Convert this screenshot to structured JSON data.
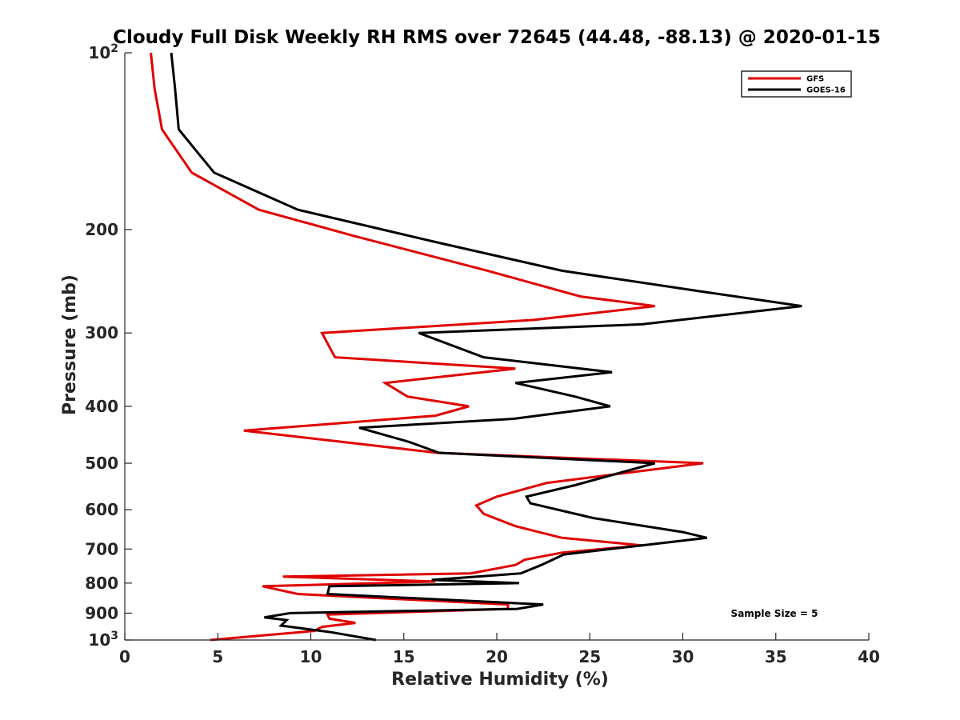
{
  "chart_data": {
    "type": "line",
    "title": "Cloudy Full Disk Weekly RH RMS over 72645 (44.48, -88.13) @ 2020-01-15",
    "xlabel": "Relative Humidity (%)",
    "ylabel": "Pressure (mb)",
    "xlim": [
      0,
      40
    ],
    "ylim": [
      100,
      1000
    ],
    "y_scale": "log",
    "y_reversed": true,
    "grid": false,
    "legend_position": "top-right",
    "x_ticks": [
      {
        "value": 0,
        "label": "0"
      },
      {
        "value": 5,
        "label": "5"
      },
      {
        "value": 10,
        "label": "10"
      },
      {
        "value": 15,
        "label": "15"
      },
      {
        "value": 20,
        "label": "20"
      },
      {
        "value": 25,
        "label": "25"
      },
      {
        "value": 30,
        "label": "30"
      },
      {
        "value": 35,
        "label": "35"
      },
      {
        "value": 40,
        "label": "40"
      }
    ],
    "y_ticks": [
      {
        "value": 100,
        "base": "10",
        "exp": "2"
      },
      {
        "value": 200,
        "label": "200"
      },
      {
        "value": 300,
        "label": "300"
      },
      {
        "value": 400,
        "label": "400"
      },
      {
        "value": 500,
        "label": "500"
      },
      {
        "value": 600,
        "label": "600"
      },
      {
        "value": 700,
        "label": "700"
      },
      {
        "value": 800,
        "label": "800"
      },
      {
        "value": 900,
        "label": "900"
      },
      {
        "value": 1000,
        "base": "10",
        "exp": "3"
      }
    ],
    "series": [
      {
        "name": "GFS",
        "color": "#e00000",
        "points": [
          [
            1.4,
            100
          ],
          [
            1.6,
            115
          ],
          [
            2.0,
            135
          ],
          [
            3.6,
            160
          ],
          [
            7.2,
            185
          ],
          [
            12.3,
            205
          ],
          [
            19.5,
            235
          ],
          [
            24.5,
            260
          ],
          [
            28.5,
            270
          ],
          [
            22.0,
            285
          ],
          [
            10.6,
            300
          ],
          [
            11.3,
            330
          ],
          [
            21.0,
            345
          ],
          [
            14.0,
            365
          ],
          [
            15.2,
            385
          ],
          [
            18.5,
            400
          ],
          [
            16.7,
            415
          ],
          [
            6.4,
            440
          ],
          [
            16.8,
            480
          ],
          [
            31.1,
            500
          ],
          [
            22.7,
            540
          ],
          [
            20.0,
            570
          ],
          [
            18.9,
            590
          ],
          [
            19.3,
            610
          ],
          [
            21.0,
            640
          ],
          [
            23.5,
            670
          ],
          [
            27.8,
            690
          ],
          [
            23.5,
            710
          ],
          [
            21.5,
            730
          ],
          [
            21.0,
            745
          ],
          [
            18.6,
            770
          ],
          [
            8.5,
            780
          ],
          [
            16.7,
            795
          ],
          [
            7.4,
            810
          ],
          [
            9.3,
            835
          ],
          [
            20.6,
            870
          ],
          [
            20.6,
            885
          ],
          [
            10.9,
            905
          ],
          [
            11.0,
            920
          ],
          [
            12.4,
            935
          ],
          [
            10.6,
            950
          ],
          [
            10.2,
            965
          ],
          [
            4.6,
            1000
          ]
        ]
      },
      {
        "name": "GOES-16",
        "color": "#000000",
        "points": [
          [
            2.5,
            100
          ],
          [
            2.7,
            115
          ],
          [
            2.9,
            135
          ],
          [
            4.8,
            160
          ],
          [
            9.3,
            185
          ],
          [
            16.7,
            210
          ],
          [
            23.5,
            235
          ],
          [
            31.0,
            255
          ],
          [
            36.4,
            270
          ],
          [
            27.8,
            290
          ],
          [
            15.8,
            300
          ],
          [
            19.3,
            330
          ],
          [
            26.2,
            350
          ],
          [
            21.0,
            365
          ],
          [
            24.2,
            385
          ],
          [
            26.1,
            400
          ],
          [
            20.9,
            420
          ],
          [
            12.6,
            435
          ],
          [
            15.3,
            460
          ],
          [
            16.9,
            480
          ],
          [
            28.5,
            500
          ],
          [
            24.2,
            545
          ],
          [
            21.6,
            570
          ],
          [
            21.8,
            585
          ],
          [
            25.2,
            620
          ],
          [
            30.0,
            655
          ],
          [
            31.3,
            670
          ],
          [
            27.8,
            690
          ],
          [
            23.6,
            715
          ],
          [
            22.4,
            745
          ],
          [
            21.3,
            770
          ],
          [
            16.5,
            790
          ],
          [
            21.2,
            800
          ],
          [
            11.0,
            810
          ],
          [
            10.9,
            835
          ],
          [
            22.5,
            870
          ],
          [
            21.1,
            885
          ],
          [
            8.9,
            900
          ],
          [
            7.5,
            915
          ],
          [
            8.7,
            925
          ],
          [
            8.4,
            945
          ],
          [
            11.1,
            970
          ],
          [
            13.5,
            1000
          ]
        ]
      }
    ],
    "annotations": [
      "Sample Size = 5"
    ]
  }
}
